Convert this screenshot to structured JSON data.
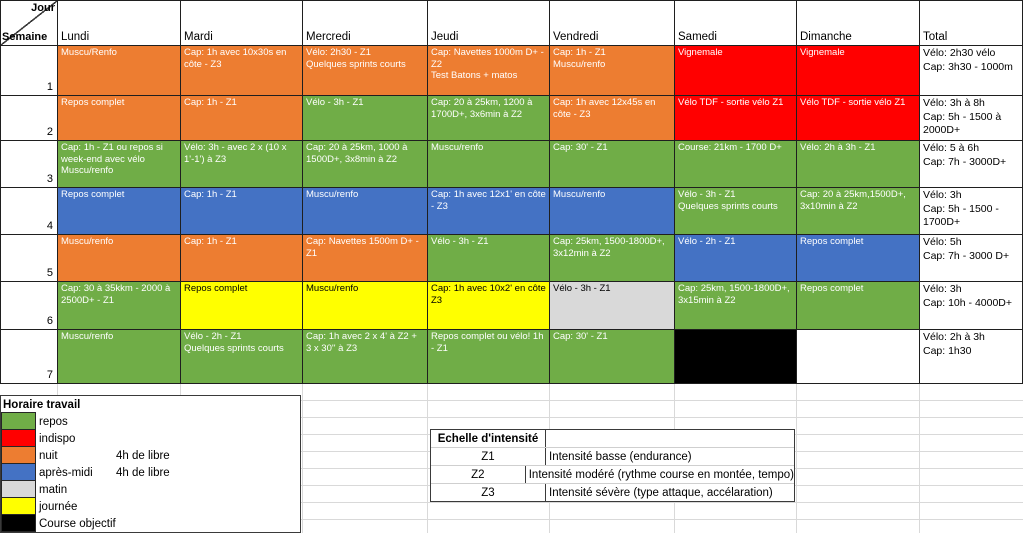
{
  "header": {
    "corner_top": "Jour",
    "corner_bottom": "Semaine",
    "days": [
      "Lundi",
      "Mardi",
      "Mercredi",
      "Jeudi",
      "Vendredi",
      "Samedi",
      "Dimanche",
      "Total"
    ]
  },
  "weeks": [
    {
      "num": "1",
      "cells": [
        {
          "text": "Muscu/Renfo",
          "color": "orange"
        },
        {
          "text": "Cap: 1h avec 10x30s en côte - Z3",
          "color": "orange"
        },
        {
          "text": "Vélo: 2h30 - Z1\nQuelques sprints courts",
          "color": "orange"
        },
        {
          "text": "Cap: Navettes 1000m D+ - Z2\nTest Batons + matos",
          "color": "orange"
        },
        {
          "text": "Cap: 1h - Z1\nMuscu/renfo",
          "color": "orange"
        },
        {
          "text": "Vignemale",
          "color": "red"
        },
        {
          "text": "Vignemale",
          "color": "red"
        },
        {
          "text": "Vélo: 2h30 vélo\nCap: 3h30  - 1000m",
          "color": "white"
        }
      ]
    },
    {
      "num": "2",
      "cells": [
        {
          "text": "Repos complet",
          "color": "orange"
        },
        {
          "text": "Cap: 1h - Z1",
          "color": "orange"
        },
        {
          "text": "Vélo - 3h - Z1",
          "color": "green"
        },
        {
          "text": "Cap: 20 à 25km, 1200 à 1700D+, 3x6min à Z2",
          "color": "green"
        },
        {
          "text": "Cap: 1h avec 12x45s en côte - Z3",
          "color": "orange"
        },
        {
          "text": "Vélo TDF - sortie vélo Z1",
          "color": "red"
        },
        {
          "text": "Vélo TDF - sortie vélo Z1",
          "color": "red"
        },
        {
          "text": "Vélo: 3h à 8h\nCap: 5h - 1500 à 2000D+",
          "color": "white"
        }
      ]
    },
    {
      "num": "3",
      "cells": [
        {
          "text": "Cap: 1h - Z1 ou repos si week-end avec vélo\nMuscu/renfo",
          "color": "green"
        },
        {
          "text": "Vélo: 3h - avec 2 x (10 x 1'-1') à Z3",
          "color": "green"
        },
        {
          "text": "Cap: 20 à 25km, 1000 à 1500D+, 3x8min à Z2",
          "color": "green"
        },
        {
          "text": "Muscu/renfo",
          "color": "green"
        },
        {
          "text": "Cap: 30' - Z1",
          "color": "green"
        },
        {
          "text": "Course: 21km - 1700 D+",
          "color": "green"
        },
        {
          "text": "Vélo: 2h à 3h - Z1",
          "color": "green"
        },
        {
          "text": "Vélo: 5 à 6h\nCap: 7h - 3000D+",
          "color": "white"
        }
      ]
    },
    {
      "num": "4",
      "cells": [
        {
          "text": "Repos complet",
          "color": "blue"
        },
        {
          "text": "Cap: 1h - Z1",
          "color": "blue"
        },
        {
          "text": "Muscu/renfo",
          "color": "blue"
        },
        {
          "text": "Cap: 1h avec 12x1' en côte - Z3",
          "color": "blue"
        },
        {
          "text": "Muscu/renfo",
          "color": "blue"
        },
        {
          "text": "Vélo - 3h - Z1\nQuelques sprints courts",
          "color": "green"
        },
        {
          "text": "Cap: 20 à 25km,1500D+, 3x10min à Z2",
          "color": "green"
        },
        {
          "text": "Vélo: 3h\nCap: 5h - 1500 - 1700D+",
          "color": "white"
        }
      ]
    },
    {
      "num": "5",
      "cells": [
        {
          "text": "Muscu/renfo",
          "color": "orange"
        },
        {
          "text": "Cap: 1h - Z1",
          "color": "orange"
        },
        {
          "text": "Cap: Navettes 1500m D+ - Z1",
          "color": "orange"
        },
        {
          "text": "Vélo - 3h - Z1",
          "color": "green"
        },
        {
          "text": "Cap: 25km,  1500-1800D+, 3x12min à Z2",
          "color": "green"
        },
        {
          "text": "Vélo - 2h - Z1",
          "color": "blue"
        },
        {
          "text": "Repos complet",
          "color": "blue"
        },
        {
          "text": "Vélo: 5h\nCap: 7h - 3000 D+",
          "color": "white"
        }
      ]
    },
    {
      "num": "6",
      "cells": [
        {
          "text": "Cap: 30 à 35kkm - 2000 à 2500D+ - Z1",
          "color": "green"
        },
        {
          "text": "Repos complet",
          "color": "yellow"
        },
        {
          "text": "Muscu/renfo",
          "color": "yellow"
        },
        {
          "text": "Cap: 1h avec 10x2' en côte Z3",
          "color": "yellow"
        },
        {
          "text": "Vélo - 3h - Z1",
          "color": "gray"
        },
        {
          "text": "Cap: 25km,  1500-1800D+, 3x15min à Z2",
          "color": "green"
        },
        {
          "text": "Repos complet",
          "color": "green"
        },
        {
          "text": "Vélo: 3h\nCap: 10h - 4000D+",
          "color": "white"
        }
      ]
    },
    {
      "num": "7",
      "cells": [
        {
          "text": "Muscu/renfo",
          "color": "green"
        },
        {
          "text": "Vélo - 2h - Z1\nQuelques sprints courts",
          "color": "green"
        },
        {
          "text": "Cap: 1h avec 2 x 4' à Z2 + 3 x 30'' à Z3",
          "color": "green"
        },
        {
          "text": "Repos complet ou vélo! 1h - Z1",
          "color": "green"
        },
        {
          "text": "Cap: 30' - Z1",
          "color": "green"
        },
        {
          "text": "",
          "color": "black"
        },
        {
          "text": "",
          "color": "white"
        },
        {
          "text": "Vélo: 2h à 3h\nCap: 1h30",
          "color": "white"
        }
      ]
    }
  ],
  "legend": {
    "title": "Horaire travail",
    "items": [
      {
        "swatch": "green",
        "label": "repos",
        "note": ""
      },
      {
        "swatch": "red",
        "label": "indispo",
        "note": ""
      },
      {
        "swatch": "orange",
        "label": "nuit",
        "note": "4h de libre"
      },
      {
        "swatch": "blue",
        "label": "après-midi",
        "note": "4h de libre"
      },
      {
        "swatch": "gray",
        "label": "matin",
        "note": ""
      },
      {
        "swatch": "yellow",
        "label": "journée",
        "note": ""
      },
      {
        "swatch": "black",
        "label": "Course objectif",
        "note": ""
      }
    ]
  },
  "intensity": {
    "title": "Echelle d'intensité",
    "rows": [
      {
        "zone": "Z1",
        "desc": "Intensité basse (endurance)"
      },
      {
        "zone": "Z2",
        "desc": "Intensité modéré (rythme course en montée, tempo)"
      },
      {
        "zone": "Z3",
        "desc": "Intensité sévère (type attaque, accélaration)"
      }
    ]
  },
  "colors": {
    "orange": "#ED7D31",
    "green": "#70AD47",
    "blue": "#4472C4",
    "red": "#FF0000",
    "yellow": "#FFFF00",
    "gray": "#D9D9D9",
    "black": "#000000",
    "white": "#FFFFFF"
  }
}
